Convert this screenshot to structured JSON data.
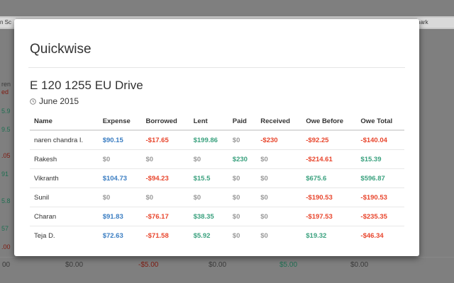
{
  "background": {
    "tab_left": "n Sc",
    "tab_right": "hark",
    "left_strip": [
      {
        "text": "ren",
        "color": "#3a3a3a"
      },
      {
        "text": "ed",
        "color": "#7f1a10"
      },
      {
        "text": "5.9",
        "color": "#1f6f52"
      },
      {
        "text": "9.5",
        "color": "#1f6f52"
      },
      {
        "text": ".05",
        "color": "#7f1a10"
      },
      {
        "text": "91",
        "color": "#1f6f52"
      },
      {
        "text": "5.8",
        "color": "#1f6f52"
      },
      {
        "text": "57",
        "color": "#1f6f52"
      },
      {
        "text": ".00",
        "color": "#7f1a10"
      }
    ],
    "bottom_row": [
      {
        "text": "00",
        "color": "#3a3a3a"
      },
      {
        "text": "$0.00",
        "color": "#3a3a3a"
      },
      {
        "text": "-$5.00",
        "color": "#7f1a10"
      },
      {
        "text": "$0.00",
        "color": "#3a3a3a"
      },
      {
        "text": "$5.00",
        "color": "#1f6f52"
      },
      {
        "text": "$0.00",
        "color": "#3a3a3a"
      }
    ]
  },
  "modal": {
    "title": "Quickwise",
    "trip_name": "E 120 1255 EU Drive",
    "trip_date": "June 2015",
    "date_icon": "clock-icon",
    "columns": [
      "Name",
      "Expense",
      "Borrowed",
      "Lent",
      "Paid",
      "Received",
      "Owe Before",
      "Owe Total"
    ],
    "rows": [
      {
        "name": "naren chandra I.",
        "expense": "$90.15",
        "borrowed": "-$17.65",
        "lent": "$199.86",
        "paid": "$0",
        "received": "-$230",
        "owe_before": "-$92.25",
        "owe_total": "-$140.04"
      },
      {
        "name": "Rakesh",
        "expense": "$0",
        "borrowed": "$0",
        "lent": "$0",
        "paid": "$230",
        "received": "$0",
        "owe_before": "-$214.61",
        "owe_total": "$15.39"
      },
      {
        "name": "Vikranth",
        "expense": "$104.73",
        "borrowed": "-$94.23",
        "lent": "$15.5",
        "paid": "$0",
        "received": "$0",
        "owe_before": "$675.6",
        "owe_total": "$596.87"
      },
      {
        "name": "Sunil",
        "expense": "$0",
        "borrowed": "$0",
        "lent": "$0",
        "paid": "$0",
        "received": "$0",
        "owe_before": "-$190.53",
        "owe_total": "-$190.53"
      },
      {
        "name": "Charan",
        "expense": "$91.83",
        "borrowed": "-$76.17",
        "lent": "$38.35",
        "paid": "$0",
        "received": "$0",
        "owe_before": "-$197.53",
        "owe_total": "-$235.35"
      },
      {
        "name": "Teja D.",
        "expense": "$72.63",
        "borrowed": "-$71.58",
        "lent": "$5.92",
        "paid": "$0",
        "received": "$0",
        "owe_before": "$19.32",
        "owe_total": "-$46.34"
      }
    ],
    "colors": {
      "blue": "#3a7dc2",
      "red": "#e8452c",
      "green": "#3aa17e",
      "gray": "#999999"
    }
  }
}
